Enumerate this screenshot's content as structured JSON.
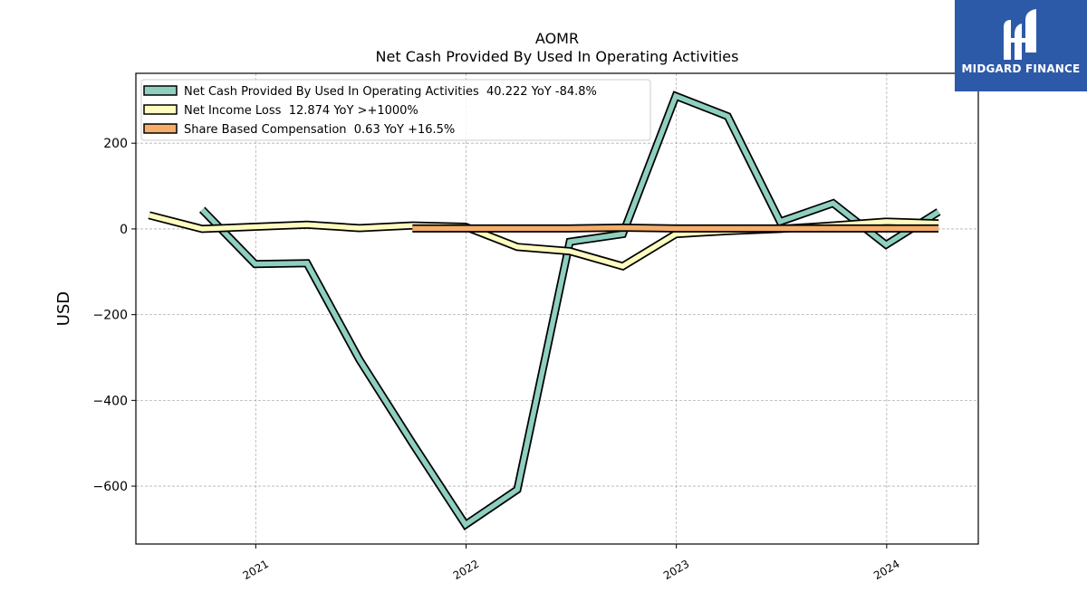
{
  "chart_data": {
    "type": "line",
    "title": "AOMR",
    "subtitle": "Net Cash Provided By Used In Operating Activities",
    "ylabel": "USD",
    "xlabel": "",
    "ylim": [
      -735,
      363
    ],
    "xlim": [
      "2020-06-07",
      "2024-06-08"
    ],
    "y_ticks": [
      200,
      0,
      -200,
      -400,
      -600
    ],
    "y_tick_labels": [
      "200",
      "0",
      "−200",
      "−400",
      "−600"
    ],
    "x_ticks": [
      "2021-01-01",
      "2022-01-01",
      "2023-01-01",
      "2024-01-01"
    ],
    "x_tick_labels": [
      "2021",
      "2022",
      "2023",
      "2024"
    ],
    "grid": true,
    "legend_position": "top-left",
    "series": [
      {
        "name": "Net Cash Provided By Used In Operating Activities",
        "legend_label": "Net Cash Provided By Used In Operating Activities  40.222 YoY -84.8%",
        "color": "#8ecfc0",
        "x": [
          "2020-09-30",
          "2020-12-31",
          "2021-03-31",
          "2021-06-30",
          "2021-09-30",
          "2021-12-31",
          "2022-03-31",
          "2022-06-30",
          "2022-09-30",
          "2022-12-31",
          "2023-03-31",
          "2023-06-30",
          "2023-09-30",
          "2023-12-31",
          "2024-03-31"
        ],
        "y": [
          45,
          -82,
          -80,
          -305,
          -500,
          -690,
          -608,
          -30,
          -12,
          310,
          263,
          17,
          60,
          -37,
          40
        ]
      },
      {
        "name": "Net Income Loss",
        "legend_label": "Net Income Loss  12.874 YoY >+1000%",
        "color": "#fefcbf",
        "x": [
          "2020-06-30",
          "2020-09-30",
          "2020-12-31",
          "2021-03-31",
          "2021-06-30",
          "2021-09-30",
          "2021-12-31",
          "2022-03-31",
          "2022-06-30",
          "2022-09-30",
          "2022-12-31",
          "2023-03-31",
          "2023-06-30",
          "2023-09-30",
          "2023-12-31",
          "2024-03-31"
        ],
        "y": [
          32,
          0,
          5,
          10,
          2,
          8,
          5,
          -42,
          -52,
          -87,
          -12,
          -5,
          0,
          8,
          17,
          13
        ]
      },
      {
        "name": "Share Based Compensation",
        "legend_label": "Share Based Compensation  0.63 YoY +16.5%",
        "color": "#f4ad6a",
        "x": [
          "2021-09-30",
          "2021-12-31",
          "2022-03-31",
          "2022-06-30",
          "2022-09-30",
          "2022-12-31",
          "2023-03-31",
          "2023-06-30",
          "2023-09-30",
          "2023-12-31",
          "2024-03-31"
        ],
        "y": [
          1,
          1,
          1,
          1,
          3,
          1,
          1,
          1,
          1,
          1,
          1
        ]
      }
    ]
  },
  "logo": {
    "text": "MIDGARD FINANCE",
    "color": "#2d5aa8"
  }
}
